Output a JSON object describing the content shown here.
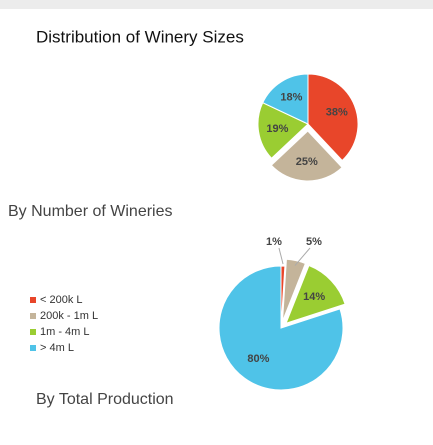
{
  "title": "Distribution of Winery Sizes",
  "chart_data": [
    {
      "type": "pie",
      "title": "By Number of Wineries",
      "values": [
        38,
        25,
        19,
        18
      ],
      "value_labels": [
        "38%",
        "25%",
        "19%",
        "18%"
      ],
      "colors": [
        "#e8462a",
        "#c4b49a",
        "#9acd32",
        "#4fc3e8"
      ]
    },
    {
      "type": "pie",
      "title": "By Total Production",
      "categories": [
        "< 200k L",
        "200k - 1m L",
        "1m - 4m L",
        "> 4m L"
      ],
      "values": [
        1,
        5,
        14,
        80
      ],
      "value_labels": [
        "1%",
        "5%",
        "14%",
        "80%"
      ],
      "colors": [
        "#e8462a",
        "#c4b49a",
        "#9acd32",
        "#4fc3e8"
      ]
    }
  ]
}
